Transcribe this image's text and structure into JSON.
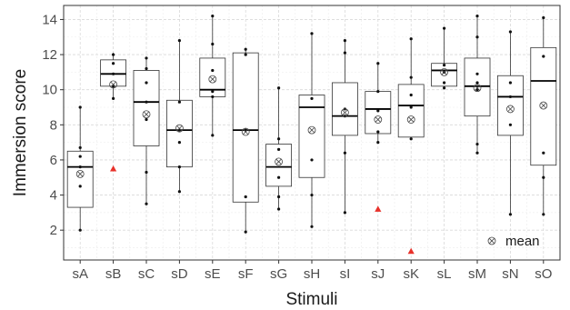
{
  "chart_data": {
    "type": "box",
    "xlabel": "Stimuli",
    "ylabel": "Immersion score",
    "ylim": [
      0.3,
      14.8
    ],
    "yticks": [
      2,
      4,
      6,
      8,
      10,
      12,
      14
    ],
    "grid": true,
    "legend": {
      "position": "bottom-right",
      "entries": [
        {
          "label": "mean",
          "symbol": "circle-x"
        }
      ]
    },
    "colors": {
      "box_fill": "#ffffff",
      "box_edge": "#333333",
      "median": "#000000",
      "outlier": "#e8312a",
      "grid_major": "#d9d9d9",
      "grid_minor": "#ececec",
      "panel_border": "#333333"
    },
    "categories": [
      "sA",
      "sB",
      "sC",
      "sD",
      "sE",
      "sF",
      "sG",
      "sH",
      "sI",
      "sJ",
      "sK",
      "sL",
      "sM",
      "sN",
      "sO"
    ],
    "boxes": [
      {
        "category": "sA",
        "lower_whisker": 2.0,
        "q1": 3.3,
        "median": 5.6,
        "q3": 6.5,
        "upper_whisker": 9.0,
        "mean": 5.2,
        "outliers": [],
        "points": [
          2.0,
          4.5,
          5.6,
          6.2,
          6.7,
          9.0
        ]
      },
      {
        "category": "sB",
        "lower_whisker": 9.5,
        "q1": 10.2,
        "median": 10.9,
        "q3": 11.7,
        "upper_whisker": 12.1,
        "mean": 10.3,
        "outliers": [
          5.5
        ],
        "points": [
          9.5,
          10.2,
          10.9,
          11.5,
          12.0
        ]
      },
      {
        "category": "sC",
        "lower_whisker": 3.5,
        "q1": 6.8,
        "median": 9.3,
        "q3": 11.1,
        "upper_whisker": 11.8,
        "mean": 8.6,
        "outliers": [],
        "points": [
          3.5,
          5.3,
          8.3,
          9.3,
          10.4,
          11.2,
          11.8
        ]
      },
      {
        "category": "sD",
        "lower_whisker": 4.2,
        "q1": 5.6,
        "median": 7.7,
        "q3": 9.4,
        "upper_whisker": 12.8,
        "mean": 7.8,
        "outliers": [],
        "points": [
          4.2,
          5.6,
          7.0,
          7.7,
          9.3,
          12.8
        ]
      },
      {
        "category": "sE",
        "lower_whisker": 7.4,
        "q1": 9.6,
        "median": 10.0,
        "q3": 11.8,
        "upper_whisker": 14.2,
        "mean": 10.6,
        "outliers": [],
        "points": [
          7.4,
          9.6,
          9.9,
          11.1,
          12.6,
          14.2
        ]
      },
      {
        "category": "sF",
        "lower_whisker": 1.9,
        "q1": 3.6,
        "median": 7.7,
        "q3": 12.1,
        "upper_whisker": 12.3,
        "mean": 7.6,
        "outliers": [],
        "points": [
          1.9,
          3.9,
          7.7,
          12.0,
          12.3
        ]
      },
      {
        "category": "sG",
        "lower_whisker": 3.2,
        "q1": 4.5,
        "median": 5.6,
        "q3": 6.9,
        "upper_whisker": 10.1,
        "mean": 5.9,
        "outliers": [],
        "points": [
          3.2,
          3.9,
          5.0,
          6.6,
          7.2,
          10.1
        ]
      },
      {
        "category": "sH",
        "lower_whisker": 2.2,
        "q1": 5.0,
        "median": 9.0,
        "q3": 9.7,
        "upper_whisker": 13.2,
        "mean": 7.7,
        "outliers": [],
        "points": [
          2.2,
          4.0,
          6.0,
          9.5,
          13.2
        ]
      },
      {
        "category": "sI",
        "lower_whisker": 3.0,
        "q1": 7.4,
        "median": 8.5,
        "q3": 10.4,
        "upper_whisker": 12.8,
        "mean": 8.7,
        "outliers": [],
        "points": [
          3.0,
          6.4,
          8.5,
          8.9,
          12.1,
          12.8
        ]
      },
      {
        "category": "sJ",
        "lower_whisker": 7.0,
        "q1": 7.5,
        "median": 8.9,
        "q3": 9.9,
        "upper_whisker": 11.5,
        "mean": 8.3,
        "outliers": [
          3.2
        ],
        "points": [
          7.0,
          7.6,
          8.8,
          9.9,
          11.5
        ]
      },
      {
        "category": "sK",
        "lower_whisker": 7.2,
        "q1": 7.3,
        "median": 9.1,
        "q3": 10.3,
        "upper_whisker": 12.9,
        "mean": 8.3,
        "outliers": [
          0.8
        ],
        "points": [
          7.2,
          9.0,
          9.7,
          10.7,
          12.9
        ]
      },
      {
        "category": "sL",
        "lower_whisker": 10.1,
        "q1": 10.2,
        "median": 11.1,
        "q3": 11.5,
        "upper_whisker": 13.5,
        "mean": 11.0,
        "outliers": [],
        "points": [
          10.1,
          10.4,
          11.0,
          11.4,
          13.5
        ]
      },
      {
        "category": "sM",
        "lower_whisker": 6.4,
        "q1": 8.5,
        "median": 10.2,
        "q3": 11.8,
        "upper_whisker": 14.2,
        "mean": 10.1,
        "outliers": [],
        "points": [
          6.4,
          6.9,
          10.0,
          10.4,
          10.9,
          13.0,
          14.2
        ]
      },
      {
        "category": "sN",
        "lower_whisker": 2.9,
        "q1": 7.4,
        "median": 9.6,
        "q3": 10.8,
        "upper_whisker": 13.3,
        "mean": 8.9,
        "outliers": [],
        "points": [
          2.9,
          8.0,
          9.6,
          10.4,
          13.3
        ]
      },
      {
        "category": "sO",
        "lower_whisker": 2.9,
        "q1": 5.7,
        "median": 10.5,
        "q3": 12.4,
        "upper_whisker": 14.1,
        "mean": 9.1,
        "outliers": [],
        "points": [
          2.9,
          5.0,
          6.4,
          11.9,
          14.1
        ]
      }
    ]
  }
}
